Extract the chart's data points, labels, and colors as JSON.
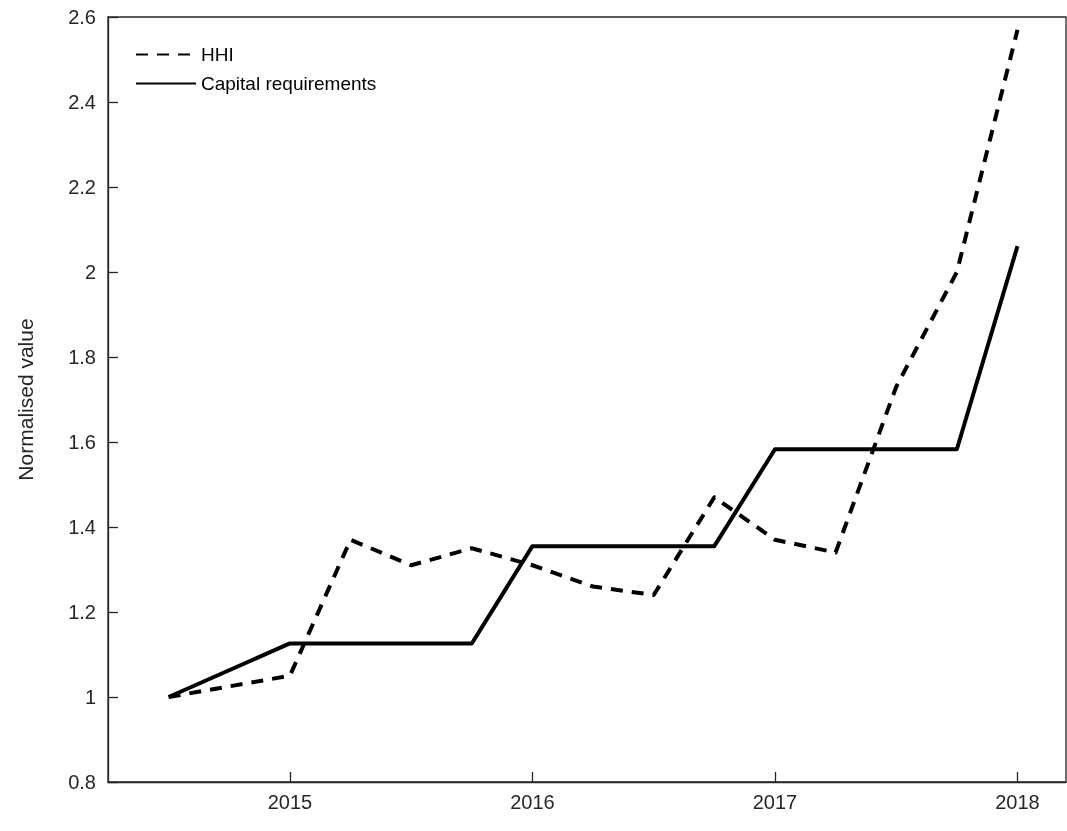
{
  "chart_data": {
    "type": "line",
    "ylabel": "Normalised value",
    "xlim": [
      2014.25,
      2018.2
    ],
    "xticks": [
      2015,
      2016,
      2017,
      2018
    ],
    "ylim": [
      0.8,
      2.6
    ],
    "yticks": [
      0.8,
      1,
      1.2,
      1.4,
      1.6,
      1.8,
      2,
      2.2,
      2.4,
      2.6
    ],
    "grid": false,
    "legend": "top left",
    "marker": "none",
    "series": [
      {
        "name": "HHI",
        "color": "#000000",
        "line_style": "dashed",
        "x": [
          2014.5,
          2015,
          2015.25,
          2015.5,
          2015.75,
          2016,
          2016.25,
          2016.5,
          2016.75,
          2017,
          2017.25,
          2017.5,
          2017.75,
          2018
        ],
        "values": [
          1.0,
          1.05,
          1.37,
          1.31,
          1.35,
          1.31,
          1.26,
          1.24,
          1.47,
          1.37,
          1.34,
          1.73,
          2.0,
          2.57
        ]
      },
      {
        "name": "Capital requirements",
        "color": "#000000",
        "line_style": "solid",
        "x": [
          2014.5,
          2015,
          2015.25,
          2015.5,
          2015.75,
          2016,
          2016.25,
          2016.5,
          2016.75,
          2017,
          2017.25,
          2017.5,
          2017.75,
          2018
        ],
        "values": [
          1.0,
          1.126,
          1.126,
          1.126,
          1.126,
          1.355,
          1.355,
          1.355,
          1.355,
          1.583,
          1.583,
          1.583,
          1.583,
          2.061
        ]
      }
    ]
  }
}
